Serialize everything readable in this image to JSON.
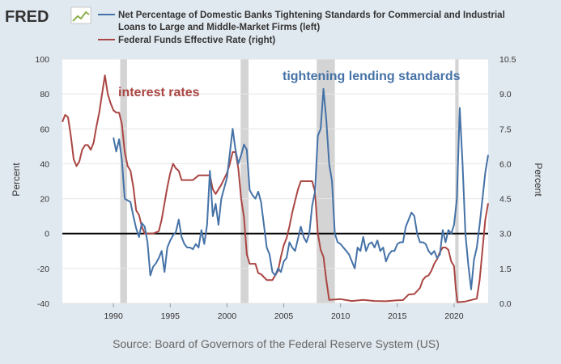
{
  "logo": "FRED",
  "chart_data": {
    "type": "line",
    "legend": [
      "Net Percentage of Domestic Banks Tightening Standards for Commercial and Industrial",
      "Loans to Large and Middle-Market Firms (left)",
      "Federal Funds Effective Rate (right)"
    ],
    "annotations": {
      "interest_rates": "interest rates",
      "tightening": "tightening lending standards"
    },
    "source": "Source: Board of Governors of the Federal Reserve System (US)",
    "ylabel_left": "Percent",
    "ylabel_right": "Percent",
    "xlim": [
      1985.5,
      2023.0
    ],
    "ylim_left": [
      -40,
      100
    ],
    "ylim_right": [
      0,
      10.5
    ],
    "x_ticks": [
      "1990",
      "1995",
      "2000",
      "2005",
      "2010",
      "2015",
      "2020"
    ],
    "y_left_ticks": [
      "100",
      "80",
      "60",
      "40",
      "20",
      "0",
      "-20",
      "-40"
    ],
    "y_right_ticks": [
      "10.5",
      "9.0",
      "7.5",
      "6.0",
      "4.5",
      "3.0",
      "1.5",
      "0.0"
    ],
    "recessions": [
      [
        1990.6,
        1991.2
      ],
      [
        2001.2,
        2001.9
      ],
      [
        2007.9,
        2009.5
      ],
      [
        2020.1,
        2020.4
      ]
    ],
    "colors": {
      "blue": "#4572a7",
      "red": "#aa4643",
      "recession": "#d4d4d4",
      "zero": "#000000"
    },
    "series": [
      {
        "name": "Net Percentage of Domestic Banks Tightening Standards (left)",
        "axis": "left",
        "x": [
          1990.0,
          1990.25,
          1990.5,
          1990.75,
          1991.0,
          1991.25,
          1991.5,
          1991.75,
          1992.0,
          1992.25,
          1992.5,
          1992.75,
          1993.0,
          1993.25,
          1993.5,
          1993.75,
          1994.0,
          1994.25,
          1994.5,
          1994.75,
          1995.0,
          1995.25,
          1995.5,
          1995.75,
          1996.0,
          1996.25,
          1996.5,
          1996.75,
          1997.0,
          1997.25,
          1997.5,
          1997.75,
          1998.0,
          1998.25,
          1998.5,
          1998.75,
          1999.0,
          1999.25,
          1999.5,
          1999.75,
          2000.0,
          2000.25,
          2000.5,
          2000.75,
          2001.0,
          2001.25,
          2001.5,
          2001.75,
          2002.0,
          2002.25,
          2002.5,
          2002.75,
          2003.0,
          2003.25,
          2003.5,
          2003.75,
          2004.0,
          2004.25,
          2004.5,
          2004.75,
          2005.0,
          2005.25,
          2005.5,
          2005.75,
          2006.0,
          2006.25,
          2006.5,
          2006.75,
          2007.0,
          2007.25,
          2007.5,
          2007.75,
          2008.0,
          2008.25,
          2008.5,
          2008.75,
          2009.0,
          2009.25,
          2009.5,
          2009.75,
          2010.0,
          2010.25,
          2010.5,
          2010.75,
          2011.0,
          2011.25,
          2011.5,
          2011.75,
          2012.0,
          2012.25,
          2012.5,
          2012.75,
          2013.0,
          2013.25,
          2013.5,
          2013.75,
          2014.0,
          2014.25,
          2014.5,
          2014.75,
          2015.0,
          2015.25,
          2015.5,
          2015.75,
          2016.0,
          2016.25,
          2016.5,
          2016.75,
          2017.0,
          2017.25,
          2017.5,
          2017.75,
          2018.0,
          2018.25,
          2018.5,
          2018.75,
          2019.0,
          2019.25,
          2019.5,
          2019.75,
          2020.0,
          2020.25,
          2020.5,
          2020.75,
          2021.0,
          2021.25,
          2021.5,
          2021.75,
          2022.0,
          2022.25,
          2022.5,
          2022.75,
          2023.0
        ],
        "y": [
          55,
          47,
          54,
          42,
          20,
          19,
          18,
          10,
          3,
          -2,
          6,
          4,
          -5,
          -24,
          -19,
          -17,
          -14,
          -10,
          -22,
          -8,
          -4,
          -1,
          1,
          8,
          -2,
          -6,
          -8,
          -8,
          -9,
          -6,
          -8,
          2,
          -6,
          5,
          36,
          10,
          17,
          5,
          20,
          26,
          32,
          46,
          60,
          48,
          40,
          45,
          51,
          48,
          25,
          22,
          20,
          24,
          18,
          5,
          -8,
          -12,
          -22,
          -24,
          -20,
          -22,
          -16,
          -14,
          -5,
          -8,
          -10,
          -3,
          4,
          -2,
          -5,
          0,
          16,
          24,
          56,
          60,
          83,
          65,
          40,
          30,
          0,
          -5,
          -6,
          -8,
          -10,
          -12,
          -16,
          -20,
          -8,
          -10,
          -2,
          -10,
          -6,
          -5,
          -8,
          -4,
          -10,
          -8,
          -16,
          -12,
          -10,
          -10,
          -6,
          -5,
          -5,
          4,
          8,
          12,
          10,
          0,
          -5,
          -5,
          -6,
          -10,
          -12,
          -10,
          -14,
          -12,
          2,
          -5,
          2,
          0,
          5,
          20,
          72,
          40,
          0,
          -18,
          -32,
          -15,
          -8,
          5,
          20,
          35,
          45
        ]
      },
      {
        "name": "Federal Funds Effective Rate (right)",
        "axis": "right",
        "x": [
          1985.5,
          1985.75,
          1986.0,
          1986.25,
          1986.5,
          1986.75,
          1987.0,
          1987.25,
          1987.5,
          1987.75,
          1988.0,
          1988.25,
          1988.5,
          1988.75,
          1989.0,
          1989.25,
          1989.5,
          1989.75,
          1990.0,
          1990.25,
          1990.5,
          1990.75,
          1991.0,
          1991.25,
          1991.5,
          1991.75,
          1992.0,
          1992.25,
          1992.5,
          1992.75,
          1993.0,
          1993.5,
          1994.0,
          1994.25,
          1994.5,
          1994.75,
          1995.0,
          1995.25,
          1995.5,
          1995.75,
          1996.0,
          1996.5,
          1997.0,
          1997.5,
          1998.0,
          1998.5,
          1998.75,
          1999.0,
          1999.5,
          2000.0,
          2000.25,
          2000.5,
          2000.75,
          2001.0,
          2001.25,
          2001.5,
          2001.75,
          2002.0,
          2002.5,
          2002.75,
          2003.0,
          2003.5,
          2004.0,
          2004.5,
          2004.75,
          2005.0,
          2005.25,
          2005.5,
          2005.75,
          2006.0,
          2006.25,
          2006.5,
          2007.0,
          2007.5,
          2007.75,
          2008.0,
          2008.25,
          2008.5,
          2008.75,
          2009.0,
          2010.0,
          2011.0,
          2012.0,
          2013.0,
          2014.0,
          2015.0,
          2015.5,
          2016.0,
          2016.5,
          2017.0,
          2017.25,
          2017.5,
          2017.75,
          2018.0,
          2018.25,
          2018.5,
          2018.75,
          2019.0,
          2019.25,
          2019.5,
          2019.75,
          2020.0,
          2020.15,
          2020.3,
          2021.0,
          2022.0,
          2022.25,
          2022.5,
          2022.75,
          2023.0
        ],
        "y": [
          7.8,
          8.1,
          8.0,
          7.2,
          6.2,
          5.9,
          6.1,
          6.6,
          6.8,
          6.8,
          6.6,
          6.9,
          7.6,
          8.2,
          9.0,
          9.8,
          9.0,
          8.6,
          8.3,
          8.2,
          8.2,
          7.7,
          6.5,
          5.9,
          5.7,
          5.0,
          4.0,
          3.8,
          3.3,
          3.0,
          3.0,
          3.0,
          3.1,
          3.6,
          4.3,
          5.0,
          5.6,
          6.0,
          5.8,
          5.7,
          5.3,
          5.3,
          5.3,
          5.5,
          5.5,
          5.5,
          4.9,
          4.7,
          5.1,
          5.6,
          6.0,
          6.5,
          6.5,
          5.8,
          4.5,
          3.7,
          2.1,
          1.7,
          1.7,
          1.3,
          1.25,
          1.0,
          1.0,
          1.4,
          2.0,
          2.5,
          2.8,
          3.3,
          3.9,
          4.4,
          4.9,
          5.25,
          5.25,
          5.25,
          4.8,
          3.0,
          2.3,
          2.0,
          1.0,
          0.15,
          0.18,
          0.1,
          0.15,
          0.1,
          0.09,
          0.13,
          0.14,
          0.38,
          0.4,
          0.66,
          1.0,
          1.15,
          1.2,
          1.4,
          1.7,
          1.9,
          2.2,
          2.4,
          2.4,
          2.3,
          1.8,
          1.6,
          0.65,
          0.05,
          0.08,
          0.2,
          1.0,
          2.3,
          3.6,
          4.3
        ]
      }
    ]
  }
}
